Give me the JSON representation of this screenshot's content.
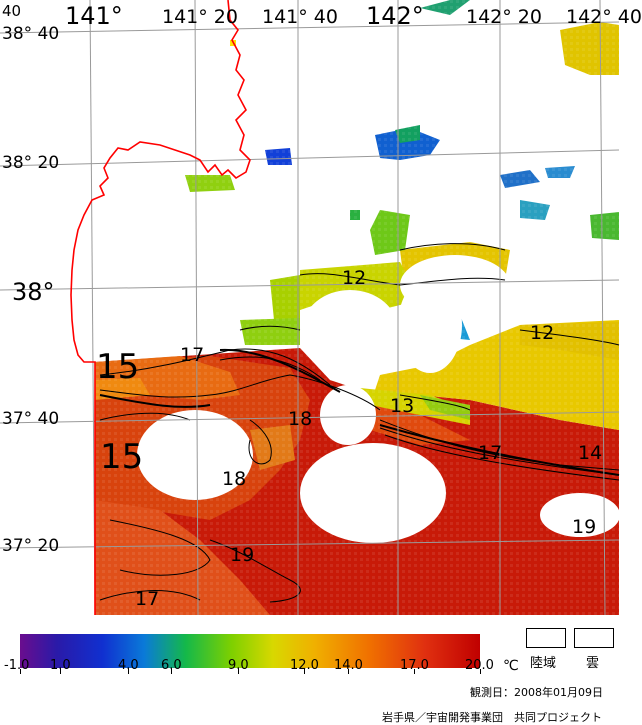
{
  "map": {
    "lon_labels": [
      "141°",
      "141° 20",
      "141° 40",
      "142°",
      "142° 20",
      "142° 40"
    ],
    "lat_labels": [
      "38° 40",
      "38° 20",
      "38°",
      "37° 40",
      "37° 20"
    ],
    "lat_top_fragment": "40",
    "isotherm_labels": [
      "15",
      "15",
      "17",
      "18",
      "18",
      "19",
      "17",
      "12",
      "13",
      "17",
      "14",
      "12",
      "19"
    ]
  },
  "legend": {
    "ticks": [
      "-1.0",
      "1.0",
      "4.0",
      "6.0",
      "9.0",
      "12.0",
      "14.0",
      "17.0",
      "20.0"
    ],
    "unit": "℃",
    "land_label": "陸域",
    "cloud_label": "雲",
    "observation_date": "観測日：2008年01月09日",
    "credit": "岩手県／宇宙開発事業団　共同プロジェクト"
  }
}
